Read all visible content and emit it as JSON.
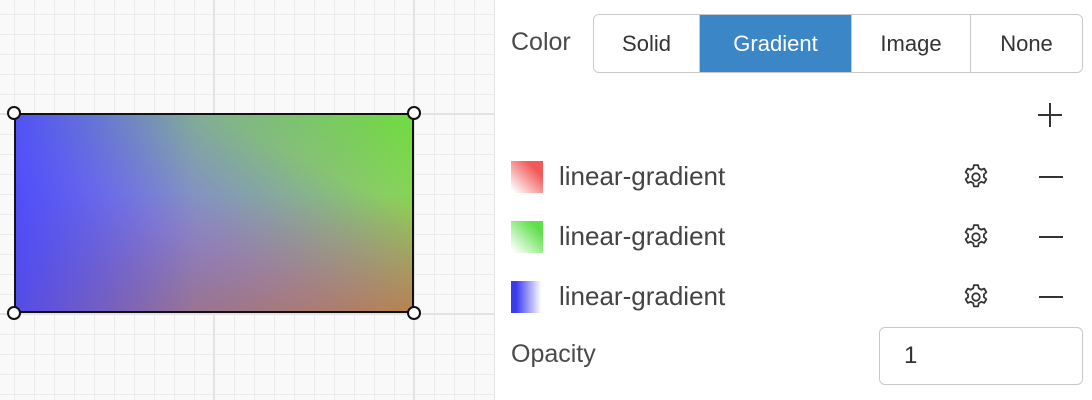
{
  "fill": {
    "label": "Color",
    "tabs": [
      {
        "label": "Solid"
      },
      {
        "label": "Gradient"
      },
      {
        "label": "Image"
      },
      {
        "label": "None"
      }
    ],
    "active_tab": "Gradient",
    "accent_color": "#3b86c6",
    "add_icon": "plus-icon",
    "layers": [
      {
        "label": "linear-gradient",
        "color": "#f25a5a",
        "settings_icon": "gear-icon",
        "remove_icon": "minus-icon"
      },
      {
        "label": "linear-gradient",
        "color": "#5ee04a",
        "settings_icon": "gear-icon",
        "remove_icon": "minus-icon"
      },
      {
        "label": "linear-gradient",
        "color": "#3a3aef",
        "settings_icon": "gear-icon",
        "remove_icon": "minus-icon"
      }
    ]
  },
  "opacity": {
    "label": "Opacity",
    "value": "1"
  }
}
